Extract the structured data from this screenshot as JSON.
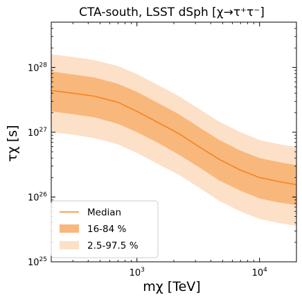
{
  "chart_data": {
    "type": "area",
    "title": "CTA-south, LSST dSph [χ→τ⁺τ⁻]",
    "xlabel": "mχ [TeV]",
    "ylabel": "τχ [s]",
    "xscale": "log",
    "yscale": "log",
    "xlim": [
      200,
      20000
    ],
    "ylim": [
      1e+25,
      5e+28
    ],
    "x_ticks": [
      {
        "value": 1000,
        "label": "10",
        "exp": "3"
      },
      {
        "value": 10000,
        "label": "10",
        "exp": "4"
      }
    ],
    "y_ticks": [
      {
        "value": 1e+25,
        "label": "10",
        "exp": "25"
      },
      {
        "value": 1e+26,
        "label": "10",
        "exp": "26"
      },
      {
        "value": 1e+27,
        "label": "10",
        "exp": "27"
      },
      {
        "value": 1e+28,
        "label": "10",
        "exp": "28"
      }
    ],
    "legend_position": "lower-left",
    "colors": {
      "median": "#f5841f",
      "band_68": "#f8b87c",
      "band_95": "#fde0c8"
    },
    "x": [
      200,
      300,
      450,
      700,
      1000,
      1500,
      2200,
      3200,
      4700,
      7000,
      10000,
      14000,
      20000
    ],
    "series": [
      {
        "name": "Median",
        "kind": "line",
        "values": [
          4.4e+27,
          4e+27,
          3.6e+27,
          2.9e+27,
          2.1e+27,
          1.4e+27,
          9.5e+26,
          6e+26,
          3.8e+26,
          2.6e+26,
          2e+26,
          1.75e+26,
          1.55e+26
        ]
      },
      {
        "name": "16-84 %",
        "kind": "band",
        "lower": [
          2.1e+27,
          1.9e+27,
          1.7e+27,
          1.35e+27,
          1e+27,
          6.8e+26,
          4.5e+26,
          2.9e+26,
          1.8e+26,
          1.25e+26,
          9.5e+25,
          8.3e+25,
          7.5e+25
        ],
        "upper": [
          8.7e+27,
          7.8e+27,
          7e+27,
          5.6e+27,
          4.2e+27,
          2.8e+27,
          1.9e+27,
          1.2e+27,
          7.6e+26,
          5.2e+26,
          4e+26,
          3.5e+26,
          3.1e+26
        ]
      },
      {
        "name": "2.5-97.5 %",
        "kind": "band",
        "lower": [
          1e+27,
          9.2e+26,
          8.1e+26,
          6.5e+26,
          4.8e+26,
          3.2e+26,
          2.2e+26,
          1.4e+26,
          8.7e+25,
          6e+25,
          4.6e+25,
          4e+25,
          3.6e+25
        ],
        "upper": [
          1.6e+28,
          1.45e+28,
          1.3e+28,
          1.05e+28,
          7.9e+27,
          5.3e+27,
          3.6e+27,
          2.3e+27,
          1.45e+27,
          1e+27,
          7.6e+26,
          6.6e+26,
          5.9e+26
        ]
      }
    ]
  }
}
